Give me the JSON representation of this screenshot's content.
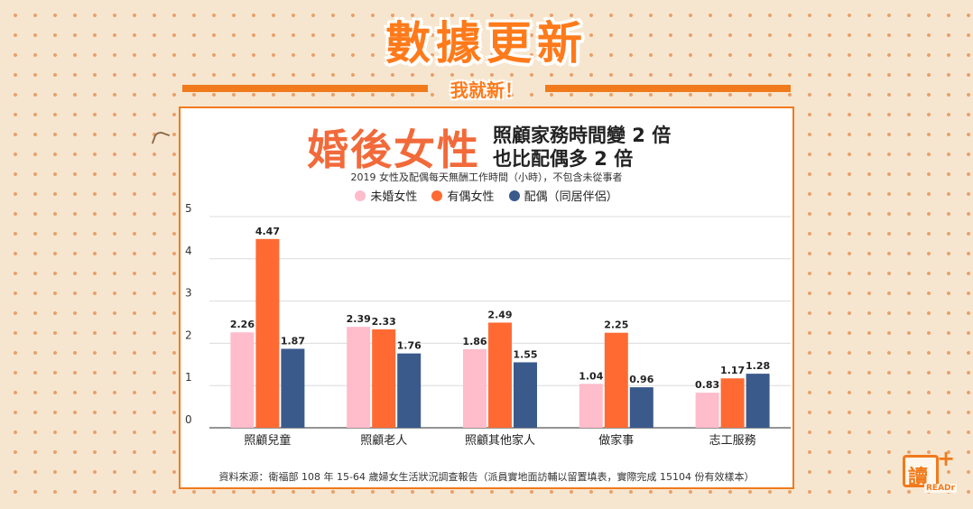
{
  "banner": {
    "title": "數據更新",
    "subtitle": "我就新！"
  },
  "headline": {
    "big": "婚後女性",
    "line1": "照顧家務時間變 2 倍",
    "line2": "也比配偶多 2 倍"
  },
  "colors": {
    "accent": "#f07a1c",
    "unmarried": "#ffbccb",
    "married": "#ff6a33",
    "spouse": "#3a5a8c"
  },
  "logo": {
    "char": "讀",
    "plus": "+",
    "tag": "READr"
  },
  "source": "資料來源：衛福部 108 年 15-64 歲婦女生活狀況調查報告（派員實地面訪輔以留置填表，實際完成 15104 份有效樣本）",
  "chart_data": {
    "type": "bar",
    "title": "",
    "subtitle": "2019 女性及配偶每天無酬工作時間（小時），不包含未從事者",
    "xlabel": "",
    "ylabel": "",
    "ylim": [
      0,
      5
    ],
    "yticks": [
      0,
      1,
      2,
      3,
      4,
      5
    ],
    "grid": true,
    "legend_position": "top-center",
    "categories": [
      "照顧兒童",
      "照顧老人",
      "照顧其他家人",
      "做家事",
      "志工服務"
    ],
    "series": [
      {
        "name": "未婚女性",
        "color": "#ffbccb",
        "values": [
          2.26,
          2.39,
          1.86,
          1.04,
          0.83
        ]
      },
      {
        "name": "有偶女性",
        "color": "#ff6a33",
        "values": [
          4.47,
          2.33,
          2.49,
          2.25,
          1.17
        ]
      },
      {
        "name": "配偶（同居伴侶）",
        "color": "#3a5a8c",
        "values": [
          1.87,
          1.76,
          1.55,
          0.96,
          1.28
        ]
      }
    ]
  }
}
